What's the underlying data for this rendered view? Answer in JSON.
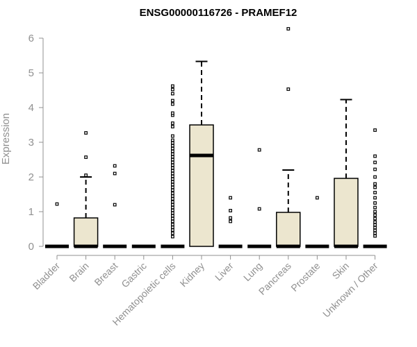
{
  "chart_data": {
    "type": "boxplot",
    "title": "ENSG00000116726 - PRAMEF12",
    "ylabel": "Expression",
    "xlabel": "",
    "ylim": [
      0,
      6
    ],
    "yticks": [
      "0",
      "1",
      "2",
      "3",
      "4",
      "5",
      "6"
    ],
    "grid": false,
    "box_fill": "#ece6cf",
    "categories": [
      "Bladder",
      "Brain",
      "Breast",
      "Gastric",
      "Hematopoietic cells",
      "Kidney",
      "Liver",
      "Lung",
      "Pancreas",
      "Prostate",
      "Skin",
      "Unknown / Other"
    ],
    "boxes": [
      {
        "q1": 0,
        "median": 0,
        "q3": 0,
        "whisker_low": 0,
        "whisker_high": 0,
        "outliers": [
          1.22
        ]
      },
      {
        "q1": 0,
        "median": 0,
        "q3": 0.82,
        "whisker_low": 0,
        "whisker_high": 2.0,
        "outliers": [
          2.05,
          2.57,
          3.27
        ]
      },
      {
        "q1": 0,
        "median": 0,
        "q3": 0,
        "whisker_low": 0,
        "whisker_high": 0,
        "outliers": [
          1.2,
          2.1,
          2.32
        ]
      },
      {
        "q1": 0,
        "median": 0,
        "q3": 0,
        "whisker_low": 0,
        "whisker_high": 0,
        "outliers": []
      },
      {
        "q1": 0,
        "median": 0,
        "q3": 0,
        "whisker_low": 0,
        "whisker_high": 0,
        "outliers": [
          0.28,
          0.38,
          0.47,
          0.55,
          0.63,
          0.72,
          0.8,
          0.88,
          0.96,
          1.04,
          1.12,
          1.2,
          1.28,
          1.37,
          1.45,
          1.53,
          1.62,
          1.7,
          1.78,
          1.86,
          1.94,
          2.02,
          2.1,
          2.18,
          2.26,
          2.34,
          2.42,
          2.5,
          2.58,
          2.66,
          2.74,
          2.82,
          2.9,
          2.98,
          3.06,
          3.18,
          3.45,
          3.55,
          3.78,
          3.84,
          4.1,
          4.2,
          4.4,
          4.52,
          4.62
        ]
      },
      {
        "q1": 0,
        "median": 2.62,
        "q3": 3.5,
        "whisker_low": 0,
        "whisker_high": 5.33,
        "outliers": []
      },
      {
        "q1": 0,
        "median": 0,
        "q3": 0,
        "whisker_low": 0,
        "whisker_high": 0,
        "outliers": [
          0.72,
          0.82,
          1.03,
          1.4
        ]
      },
      {
        "q1": 0,
        "median": 0,
        "q3": 0,
        "whisker_low": 0,
        "whisker_high": 0,
        "outliers": [
          1.08,
          2.78
        ]
      },
      {
        "q1": 0,
        "median": 0,
        "q3": 0.98,
        "whisker_low": 0,
        "whisker_high": 2.2,
        "outliers": [
          4.53,
          6.27
        ]
      },
      {
        "q1": 0,
        "median": 0,
        "q3": 0,
        "whisker_low": 0,
        "whisker_high": 0,
        "outliers": [
          1.4
        ]
      },
      {
        "q1": 0,
        "median": 0,
        "q3": 1.96,
        "whisker_low": 0,
        "whisker_high": 4.23,
        "outliers": []
      },
      {
        "q1": 0,
        "median": 0,
        "q3": 0,
        "whisker_low": 0,
        "whisker_high": 0,
        "outliers": [
          0.3,
          0.38,
          0.46,
          0.54,
          0.62,
          0.7,
          0.8,
          0.9,
          1.0,
          1.12,
          1.25,
          1.4,
          1.55,
          1.7,
          1.8,
          2.0,
          2.22,
          2.42,
          2.6,
          3.35
        ]
      }
    ]
  }
}
